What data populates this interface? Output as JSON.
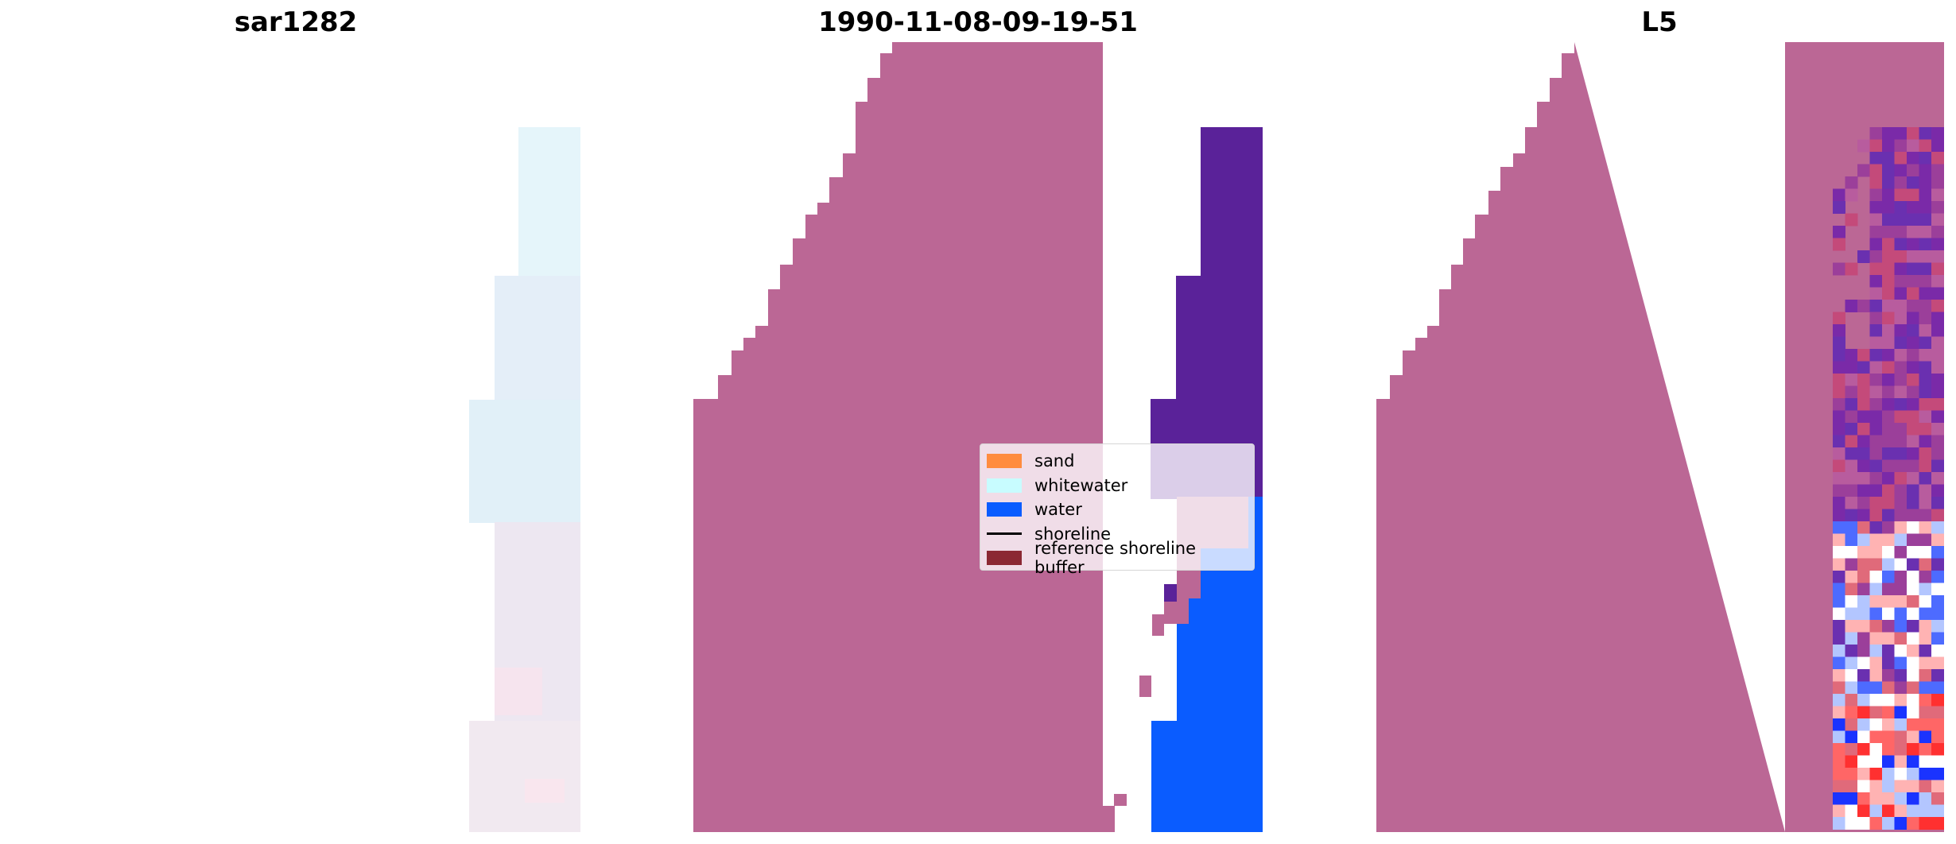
{
  "panels": [
    {
      "title": "sar1282"
    },
    {
      "title": "1990-11-08-09-19-51"
    },
    {
      "title": "L5"
    }
  ],
  "legend": {
    "items": [
      {
        "label": "sand",
        "kind": "patch",
        "color": "#ff8c3f"
      },
      {
        "label": "whitewater",
        "kind": "patch",
        "color": "#c8fcff"
      },
      {
        "label": "water",
        "kind": "patch",
        "color": "#0a5cff"
      },
      {
        "label": "shoreline",
        "kind": "line",
        "color": "#000000"
      },
      {
        "label": "reference shoreline buffer",
        "kind": "patch",
        "color": "#8b2833"
      }
    ]
  },
  "colors": {
    "reference_buffer_overlay": "#bb6795",
    "water_dark_overlay": "#5a2299",
    "water": "#0a5cff",
    "whitewater_tint": "#e6f5fb",
    "background": "#ffffff"
  }
}
